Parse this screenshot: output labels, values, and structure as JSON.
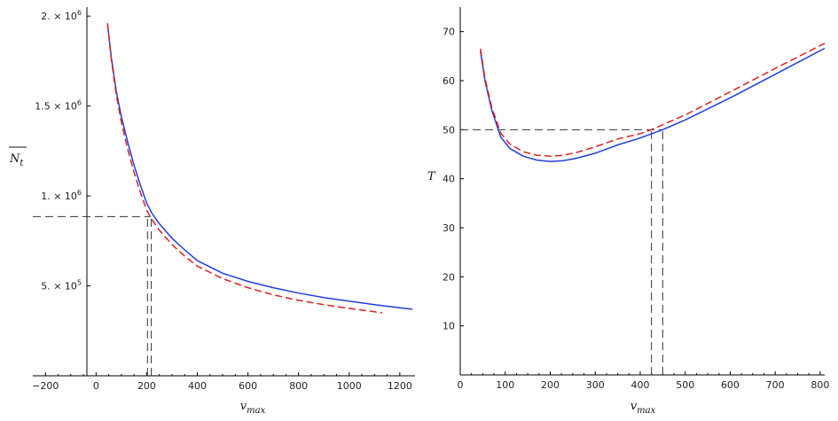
{
  "chart_data": [
    {
      "type": "line",
      "xlabel": "v_max",
      "ylabel": "N_t (overlined)",
      "x_ticks": [
        -200,
        0,
        200,
        400,
        600,
        800,
        1000,
        1200
      ],
      "y_ticks": [
        {
          "value": 500000,
          "label": "5. × 10^5"
        },
        {
          "value": 1000000,
          "label": "1. × 10^6"
        },
        {
          "value": 1500000,
          "label": "1.5 × 10^6"
        },
        {
          "value": 2000000,
          "label": "2. × 10^6"
        }
      ],
      "xlim": [
        -250,
        1260
      ],
      "ylim": [
        0,
        2050000
      ],
      "series": [
        {
          "color": "#1f3fe0",
          "dash": "solid",
          "x": [
            45,
            60,
            80,
            100,
            125,
            150,
            175,
            200,
            220,
            250,
            300,
            350,
            400,
            500,
            600,
            700,
            800,
            900,
            1000,
            1100,
            1200,
            1250
          ],
          "y": [
            1960000,
            1770000,
            1580000,
            1440000,
            1300000,
            1170000,
            1060000,
            960000,
            905000,
            845000,
            765000,
            700000,
            640000,
            570000,
            525000,
            490000,
            460000,
            435000,
            415000,
            395000,
            378000,
            370000
          ]
        },
        {
          "color": "#e01f1f",
          "dash": "dashed",
          "x": [
            45,
            60,
            80,
            100,
            125,
            150,
            175,
            200,
            220,
            250,
            300,
            350,
            400,
            500,
            600,
            700,
            800,
            900,
            1000,
            1130
          ],
          "y": [
            1960000,
            1760000,
            1560000,
            1410000,
            1260000,
            1130000,
            1020000,
            920000,
            870000,
            810000,
            730000,
            665000,
            610000,
            540000,
            490000,
            450000,
            420000,
            395000,
            375000,
            350000
          ]
        }
      ],
      "reference_lines": [
        {
          "type": "horizontal",
          "y": 885000,
          "x_from": -250,
          "x_to": 215
        },
        {
          "type": "vertical",
          "x": 203,
          "y_from": 0,
          "y_to": 885000
        },
        {
          "type": "vertical",
          "x": 218,
          "y_from": 0,
          "y_to": 885000
        }
      ]
    },
    {
      "type": "line",
      "xlabel": "v_max",
      "ylabel": "T",
      "x_ticks": [
        0,
        100,
        200,
        300,
        400,
        500,
        600,
        700,
        800
      ],
      "y_ticks": [
        10,
        20,
        30,
        40,
        50,
        60,
        70
      ],
      "xlim": [
        0,
        810
      ],
      "ylim": [
        0,
        75
      ],
      "series": [
        {
          "color": "#1f3fe0",
          "dash": "solid",
          "x": [
            45,
            55,
            70,
            90,
            110,
            140,
            170,
            200,
            230,
            260,
            300,
            350,
            400,
            450,
            500,
            600,
            700,
            810
          ],
          "y": [
            66,
            60,
            54,
            48.5,
            46.2,
            44.6,
            43.8,
            43.5,
            43.7,
            44.2,
            45.2,
            46.9,
            48.3,
            50.0,
            52.0,
            56.5,
            61.3,
            66.6
          ]
        },
        {
          "color": "#e01f1f",
          "dash": "dashed",
          "x": [
            45,
            55,
            70,
            90,
            110,
            140,
            170,
            200,
            230,
            260,
            300,
            350,
            400,
            425,
            500,
            600,
            700,
            810
          ],
          "y": [
            66.5,
            60.5,
            54.6,
            49.3,
            47.1,
            45.5,
            44.8,
            44.6,
            44.8,
            45.4,
            46.5,
            48.1,
            49.2,
            50.0,
            53.0,
            57.7,
            62.5,
            67.6
          ]
        }
      ],
      "reference_lines": [
        {
          "type": "horizontal",
          "y": 50,
          "x_from": 0,
          "x_to": 450
        },
        {
          "type": "vertical",
          "x": 425,
          "y_from": 0,
          "y_to": 50
        },
        {
          "type": "vertical",
          "x": 450,
          "y_from": 0,
          "y_to": 50
        }
      ]
    }
  ]
}
